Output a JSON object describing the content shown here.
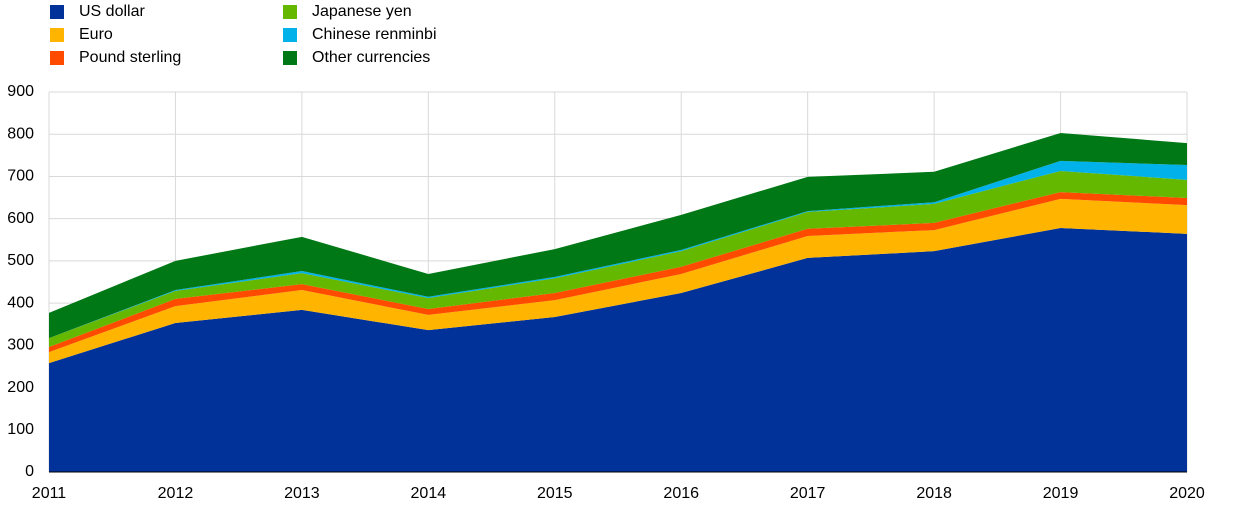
{
  "chart_data": {
    "type": "stacked-area",
    "x": [
      2011,
      2012,
      2013,
      2014,
      2015,
      2016,
      2017,
      2018,
      2019,
      2020
    ],
    "series": [
      {
        "name": "US dollar",
        "color": "#003299",
        "values": [
          258,
          353,
          384,
          336,
          367,
          424,
          507,
          523,
          578,
          564
        ]
      },
      {
        "name": "Euro",
        "color": "#ffb400",
        "values": [
          26,
          40,
          47,
          36,
          40,
          45,
          52,
          50,
          69,
          68
        ]
      },
      {
        "name": "Pound sterling",
        "color": "#ff4b00",
        "values": [
          12,
          17,
          14,
          14,
          17,
          17,
          17,
          17,
          16,
          17
        ]
      },
      {
        "name": "Japanese yen",
        "color": "#65b800",
        "values": [
          21,
          19,
          26,
          26,
          35,
          37,
          40,
          45,
          50,
          43
        ]
      },
      {
        "name": "Chinese renminbi",
        "color": "#00b1ea",
        "values": [
          0,
          2,
          5,
          3,
          3,
          3,
          2,
          4,
          24,
          35
        ]
      },
      {
        "name": "Other currencies",
        "color": "#007816",
        "values": [
          60,
          69,
          81,
          54,
          66,
          83,
          81,
          72,
          66,
          52
        ]
      }
    ],
    "xlim": [
      2011,
      2020
    ],
    "xticks": [
      2011,
      2012,
      2013,
      2014,
      2015,
      2016,
      2017,
      2018,
      2019,
      2020
    ],
    "ylim": [
      0,
      900
    ],
    "yticks": [
      0,
      100,
      200,
      300,
      400,
      500,
      600,
      700,
      800,
      900
    ],
    "grid": true
  }
}
